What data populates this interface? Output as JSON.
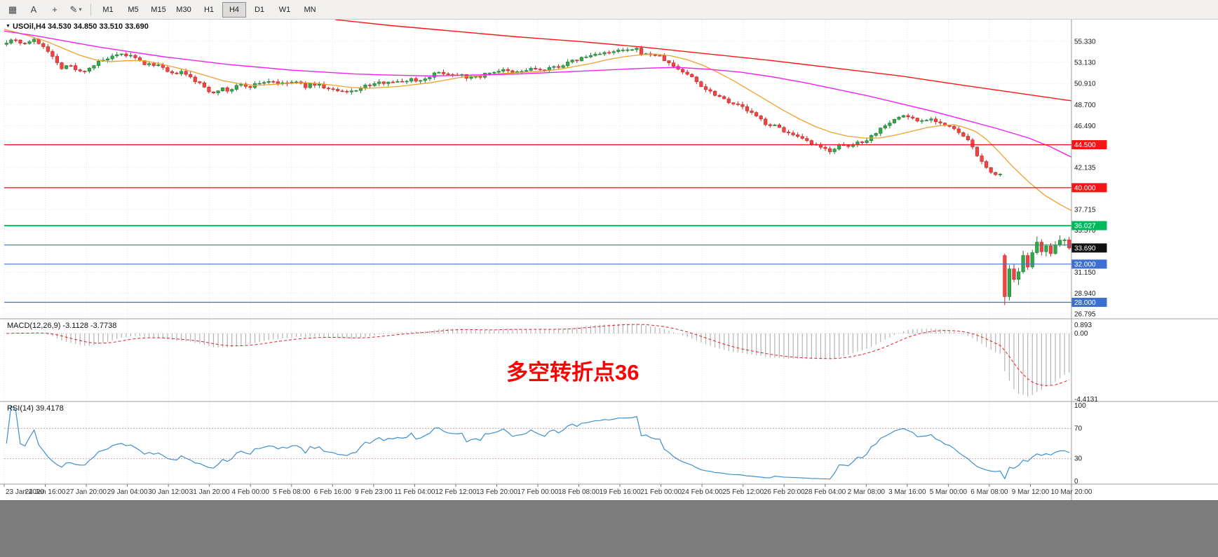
{
  "toolbar": {
    "tools": [
      {
        "name": "chart-grid-icon",
        "glyph": "▦"
      },
      {
        "name": "text-label-icon",
        "glyph": "A"
      },
      {
        "name": "crosshair-icon",
        "glyph": "+"
      },
      {
        "name": "draw-tool-icon",
        "glyph": "✎"
      },
      {
        "name": "dropdown-arrow-icon",
        "glyph": "▾"
      }
    ],
    "timeframes": [
      {
        "label": "M1",
        "active": false
      },
      {
        "label": "M5",
        "active": false
      },
      {
        "label": "M15",
        "active": false
      },
      {
        "label": "M30",
        "active": false
      },
      {
        "label": "H1",
        "active": false
      },
      {
        "label": "H4",
        "active": true
      },
      {
        "label": "D1",
        "active": false
      },
      {
        "label": "W1",
        "active": false
      },
      {
        "label": "MN",
        "active": false
      }
    ]
  },
  "chart": {
    "title": "USOil,H4 34.530 34.850 33.510 33.690",
    "title_marker": "▼"
  },
  "chart_data": {
    "type": "candlestick",
    "symbol": "USOil",
    "timeframe": "H4",
    "current_bar": {
      "open": 34.53,
      "high": 34.85,
      "low": 33.51,
      "close": 33.69
    },
    "colors": {
      "up_fill": "#33a94c",
      "up_edge": "#1f7a33",
      "down_fill": "#ef4545",
      "down_edge": "#c42525",
      "background": "#ffffff",
      "grid": "#e4e4e4"
    },
    "y_axis": {
      "ticks": [
        {
          "v": 55.33,
          "label": "55.330"
        },
        {
          "v": 53.13,
          "label": "53.130"
        },
        {
          "v": 50.91,
          "label": "50.910"
        },
        {
          "v": 48.7,
          "label": "48.700"
        },
        {
          "v": 46.49,
          "label": "46.490"
        },
        {
          "v": 42.135,
          "label": "42.135"
        },
        {
          "v": 37.715,
          "label": "37.715"
        },
        {
          "v": 35.57,
          "label": "35.570"
        },
        {
          "v": 31.15,
          "label": "31.150"
        },
        {
          "v": 28.94,
          "label": "28.940"
        },
        {
          "v": 26.795,
          "label": "26.795"
        }
      ]
    },
    "x_axis": {
      "labels": [
        "23 Jan 2020",
        "24 Jan 16:00",
        "27 Jan 20:00",
        "29 Jan 04:00",
        "30 Jan 12:00",
        "31 Jan 20:00",
        "4 Feb 00:00",
        "5 Feb 08:00",
        "6 Feb 16:00",
        "9 Feb 23:00",
        "11 Feb 04:00",
        "12 Feb 12:00",
        "13 Feb 20:00",
        "17 Feb 00:00",
        "18 Feb 08:00",
        "19 Feb 16:00",
        "21 Feb 00:00",
        "24 Feb 04:00",
        "25 Feb 12:00",
        "26 Feb 20:00",
        "28 Feb 04:00",
        "2 Mar 08:00",
        "3 Mar 16:00",
        "5 Mar 00:00",
        "6 Mar 08:00",
        "9 Mar 12:00",
        "10 Mar 20:00"
      ]
    },
    "hlines": [
      {
        "value": 44.5,
        "color": "#f21616",
        "width": 1.4
      },
      {
        "value": 40.0,
        "color": "#e01414",
        "width": 1.2
      },
      {
        "value": 36.027,
        "color": "#00cf66",
        "width": 2.2
      },
      {
        "value": 34.0,
        "color": "#3c6fd0",
        "width": 1.1
      },
      {
        "value": 32.0,
        "color": "#3c6fd0",
        "width": 1.2
      },
      {
        "value": 28.0,
        "color": "#3c6fd0",
        "width": 1.2
      }
    ],
    "price_badges": [
      {
        "label": "44.500",
        "value": 44.5,
        "color": "#f21616"
      },
      {
        "label": "40.000",
        "value": 40.0,
        "color": "#f21616"
      },
      {
        "label": "36.027",
        "value": 36.027,
        "color": "#00b85c"
      },
      {
        "label": "32.000",
        "value": 32.0,
        "color": "#3c6fd0"
      },
      {
        "label": "28.000",
        "value": 28.0,
        "color": "#3c6fd0"
      },
      {
        "label": "33.690",
        "value": 33.69,
        "color": "#101010"
      }
    ],
    "candles": {
      "count": 232,
      "close_anchors": [
        [
          0.002,
          55.3
        ],
        [
          0.01,
          55.6
        ],
        [
          0.018,
          55.0
        ],
        [
          0.026,
          55.5
        ],
        [
          0.034,
          55.1
        ],
        [
          0.042,
          54.3
        ],
        [
          0.048,
          53.2
        ],
        [
          0.054,
          52.6
        ],
        [
          0.06,
          52.9
        ],
        [
          0.066,
          52.4
        ],
        [
          0.072,
          52.1
        ],
        [
          0.08,
          52.6
        ],
        [
          0.09,
          53.2
        ],
        [
          0.1,
          53.6
        ],
        [
          0.11,
          53.9
        ],
        [
          0.118,
          53.8
        ],
        [
          0.126,
          53.3
        ],
        [
          0.134,
          52.8
        ],
        [
          0.142,
          53.0
        ],
        [
          0.15,
          52.3
        ],
        [
          0.158,
          51.8
        ],
        [
          0.164,
          52.2
        ],
        [
          0.172,
          51.7
        ],
        [
          0.18,
          51.1
        ],
        [
          0.188,
          50.5
        ],
        [
          0.194,
          49.9
        ],
        [
          0.202,
          50.4
        ],
        [
          0.21,
          50.1
        ],
        [
          0.22,
          50.8
        ],
        [
          0.23,
          50.6
        ],
        [
          0.24,
          51.0
        ],
        [
          0.25,
          51.2
        ],
        [
          0.26,
          50.8
        ],
        [
          0.272,
          51.1
        ],
        [
          0.282,
          50.6
        ],
        [
          0.292,
          50.9
        ],
        [
          0.302,
          50.4
        ],
        [
          0.312,
          50.1
        ],
        [
          0.32,
          49.9
        ],
        [
          0.33,
          50.3
        ],
        [
          0.34,
          50.7
        ],
        [
          0.35,
          50.9
        ],
        [
          0.36,
          51.2
        ],
        [
          0.37,
          51.0
        ],
        [
          0.38,
          51.4
        ],
        [
          0.39,
          51.2
        ],
        [
          0.4,
          51.8
        ],
        [
          0.41,
          52.1
        ],
        [
          0.42,
          51.8
        ],
        [
          0.428,
          52.0
        ],
        [
          0.436,
          51.4
        ],
        [
          0.446,
          51.7
        ],
        [
          0.456,
          52.1
        ],
        [
          0.466,
          52.3
        ],
        [
          0.476,
          52.0
        ],
        [
          0.486,
          52.2
        ],
        [
          0.496,
          52.5
        ],
        [
          0.506,
          52.2
        ],
        [
          0.514,
          52.6
        ],
        [
          0.522,
          52.8
        ],
        [
          0.532,
          53.2
        ],
        [
          0.542,
          53.6
        ],
        [
          0.552,
          53.9
        ],
        [
          0.56,
          54.2
        ],
        [
          0.568,
          54.0
        ],
        [
          0.576,
          54.4
        ],
        [
          0.584,
          54.3
        ],
        [
          0.592,
          54.5
        ],
        [
          0.6,
          53.9
        ],
        [
          0.608,
          54.0
        ],
        [
          0.616,
          53.6
        ],
        [
          0.624,
          52.9
        ],
        [
          0.632,
          52.4
        ],
        [
          0.644,
          51.6
        ],
        [
          0.656,
          50.4
        ],
        [
          0.668,
          49.7
        ],
        [
          0.68,
          49.0
        ],
        [
          0.692,
          48.4
        ],
        [
          0.704,
          47.5
        ],
        [
          0.714,
          46.7
        ],
        [
          0.726,
          46.3
        ],
        [
          0.736,
          45.6
        ],
        [
          0.746,
          45.1
        ],
        [
          0.756,
          44.6
        ],
        [
          0.766,
          44.1
        ],
        [
          0.774,
          43.9
        ],
        [
          0.782,
          44.4
        ],
        [
          0.79,
          44.2
        ],
        [
          0.798,
          44.7
        ],
        [
          0.806,
          44.9
        ],
        [
          0.816,
          45.7
        ],
        [
          0.826,
          46.7
        ],
        [
          0.836,
          47.2
        ],
        [
          0.842,
          47.6
        ],
        [
          0.85,
          47.3
        ],
        [
          0.858,
          46.9
        ],
        [
          0.866,
          47.3
        ],
        [
          0.874,
          47.0
        ],
        [
          0.88,
          46.6
        ],
        [
          0.888,
          46.2
        ],
        [
          0.894,
          45.8
        ],
        [
          0.9,
          45.2
        ],
        [
          0.906,
          44.5
        ],
        [
          0.912,
          43.4
        ],
        [
          0.917,
          42.4
        ],
        [
          0.922,
          41.8
        ],
        [
          0.927,
          41.5
        ],
        [
          0.933,
          41.4
        ]
      ],
      "tail": [
        [
          32.9,
          33.1,
          27.7,
          28.6
        ],
        [
          28.6,
          31.9,
          28.2,
          31.5
        ],
        [
          31.5,
          32.0,
          30.1,
          30.4
        ],
        [
          30.4,
          31.6,
          29.8,
          31.2
        ],
        [
          31.2,
          33.4,
          31.0,
          32.9
        ],
        [
          32.9,
          33.2,
          31.4,
          31.7
        ],
        [
          31.7,
          33.5,
          31.5,
          33.2
        ],
        [
          33.2,
          34.9,
          33.0,
          34.3
        ],
        [
          34.3,
          34.6,
          32.9,
          33.3
        ],
        [
          33.3,
          34.1,
          32.8,
          33.9
        ],
        [
          33.9,
          34.2,
          32.8,
          33.1
        ],
        [
          33.1,
          34.4,
          33.0,
          34.0
        ],
        [
          34.0,
          35.0,
          33.8,
          34.5
        ],
        [
          34.5,
          34.7,
          33.9,
          34.53
        ],
        [
          34.53,
          34.85,
          33.51,
          33.69
        ]
      ]
    },
    "moving_averages": [
      {
        "name": "ma-fast",
        "color": "#f0a030",
        "width": 1.3,
        "anchors": [
          [
            0.0,
            56.6
          ],
          [
            0.02,
            56.0
          ],
          [
            0.04,
            55.3
          ],
          [
            0.055,
            54.6
          ],
          [
            0.07,
            53.9
          ],
          [
            0.085,
            53.4
          ],
          [
            0.1,
            53.2
          ],
          [
            0.115,
            53.3
          ],
          [
            0.13,
            53.3
          ],
          [
            0.145,
            53.0
          ],
          [
            0.16,
            52.6
          ],
          [
            0.175,
            52.2
          ],
          [
            0.19,
            51.7
          ],
          [
            0.205,
            51.2
          ],
          [
            0.22,
            50.9
          ],
          [
            0.235,
            50.7
          ],
          [
            0.25,
            50.8
          ],
          [
            0.265,
            50.9
          ],
          [
            0.28,
            51.0
          ],
          [
            0.295,
            50.9
          ],
          [
            0.31,
            50.7
          ],
          [
            0.325,
            50.5
          ],
          [
            0.34,
            50.4
          ],
          [
            0.355,
            50.5
          ],
          [
            0.37,
            50.6
          ],
          [
            0.385,
            50.8
          ],
          [
            0.4,
            51.0
          ],
          [
            0.415,
            51.3
          ],
          [
            0.43,
            51.6
          ],
          [
            0.445,
            51.7
          ],
          [
            0.46,
            51.9
          ],
          [
            0.475,
            52.0
          ],
          [
            0.49,
            52.1
          ],
          [
            0.505,
            52.2
          ],
          [
            0.52,
            52.4
          ],
          [
            0.535,
            52.7
          ],
          [
            0.55,
            53.0
          ],
          [
            0.565,
            53.4
          ],
          [
            0.58,
            53.7
          ],
          [
            0.595,
            53.9
          ],
          [
            0.61,
            54.0
          ],
          [
            0.625,
            53.8
          ],
          [
            0.64,
            53.4
          ],
          [
            0.655,
            52.8
          ],
          [
            0.67,
            52.0
          ],
          [
            0.685,
            51.1
          ],
          [
            0.7,
            50.1
          ],
          [
            0.715,
            49.1
          ],
          [
            0.73,
            48.1
          ],
          [
            0.745,
            47.2
          ],
          [
            0.76,
            46.4
          ],
          [
            0.775,
            45.8
          ],
          [
            0.79,
            45.4
          ],
          [
            0.805,
            45.2
          ],
          [
            0.82,
            45.2
          ],
          [
            0.835,
            45.5
          ],
          [
            0.85,
            45.9
          ],
          [
            0.865,
            46.3
          ],
          [
            0.878,
            46.5
          ],
          [
            0.89,
            46.6
          ],
          [
            0.9,
            46.3
          ],
          [
            0.91,
            45.9
          ],
          [
            0.92,
            45.1
          ],
          [
            0.93,
            44.0
          ],
          [
            0.945,
            42.2
          ],
          [
            0.96,
            40.6
          ],
          [
            0.975,
            39.2
          ],
          [
            0.99,
            38.2
          ],
          [
            1.0,
            37.6
          ]
        ]
      },
      {
        "name": "ma-medium",
        "color": "#f320f3",
        "width": 1.4,
        "anchors": [
          [
            0.0,
            56.4
          ],
          [
            0.03,
            55.9
          ],
          [
            0.06,
            55.3
          ],
          [
            0.09,
            54.7
          ],
          [
            0.12,
            54.2
          ],
          [
            0.15,
            53.7
          ],
          [
            0.18,
            53.3
          ],
          [
            0.21,
            52.9
          ],
          [
            0.24,
            52.6
          ],
          [
            0.27,
            52.3
          ],
          [
            0.3,
            52.1
          ],
          [
            0.33,
            51.9
          ],
          [
            0.36,
            51.8
          ],
          [
            0.4,
            51.7
          ],
          [
            0.44,
            51.8
          ],
          [
            0.48,
            51.9
          ],
          [
            0.52,
            52.1
          ],
          [
            0.56,
            52.3
          ],
          [
            0.6,
            52.5
          ],
          [
            0.63,
            52.6
          ],
          [
            0.66,
            52.4
          ],
          [
            0.69,
            52.1
          ],
          [
            0.72,
            51.6
          ],
          [
            0.75,
            51.0
          ],
          [
            0.78,
            50.3
          ],
          [
            0.81,
            49.6
          ],
          [
            0.84,
            48.8
          ],
          [
            0.87,
            48.0
          ],
          [
            0.9,
            47.1
          ],
          [
            0.93,
            46.2
          ],
          [
            0.96,
            45.2
          ],
          [
            0.98,
            44.3
          ],
          [
            1.0,
            43.2
          ]
        ]
      },
      {
        "name": "ma-slow",
        "color": "#ff1414",
        "width": 1.4,
        "anchors": [
          [
            0.31,
            57.6
          ],
          [
            0.36,
            57.0
          ],
          [
            0.42,
            56.4
          ],
          [
            0.48,
            55.8
          ],
          [
            0.54,
            55.3
          ],
          [
            0.6,
            54.7
          ],
          [
            0.66,
            54.0
          ],
          [
            0.72,
            53.3
          ],
          [
            0.78,
            52.5
          ],
          [
            0.84,
            51.7
          ],
          [
            0.9,
            50.7
          ],
          [
            0.95,
            49.9
          ],
          [
            1.0,
            49.1
          ]
        ]
      }
    ],
    "indicators": [
      {
        "name": "MACD",
        "label": "MACD(12,26,9) -3.1128 -3.7738",
        "fast": 12,
        "slow": 26,
        "signal_period": 9,
        "value": -3.1128,
        "signal_value": -3.7738,
        "axis": [
          {
            "v": 0.893,
            "label": "0.893"
          },
          {
            "v": 0,
            "label": "0.00"
          },
          {
            "v": -4.4131,
            "label": "-4.4131"
          }
        ],
        "histogram_color": "#b4b4b4",
        "signal_color": "#e02020"
      },
      {
        "name": "RSI",
        "label": "RSI(14) 39.4178",
        "period": 14,
        "value": 39.4178,
        "levels": [
          30,
          70
        ],
        "axis": [
          {
            "v": 100,
            "label": "100"
          },
          {
            "v": 70,
            "label": "70"
          },
          {
            "v": 30,
            "label": "30"
          },
          {
            "v": 0,
            "label": "0"
          }
        ],
        "line_color": "#3c8fd0",
        "level_color": "#d9a0a0"
      }
    ],
    "annotation": {
      "text": "多空转折点36",
      "color": "#ff0000"
    }
  }
}
